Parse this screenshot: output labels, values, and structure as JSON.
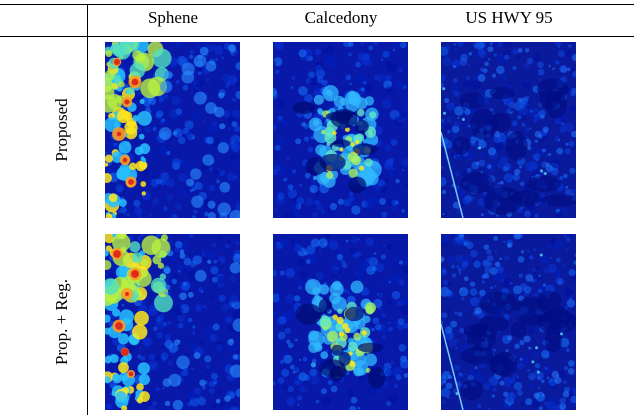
{
  "columns": [
    "Sphene",
    "Calcedony",
    "US HWY 95"
  ],
  "rows": [
    {
      "label": "Proposed"
    },
    {
      "label": "Prop. + Reg."
    }
  ],
  "colormap": {
    "low": "#00008f",
    "mid": "#0a6cff",
    "high": "#ffe81a",
    "peak": "#d8201a"
  },
  "panels": [
    {
      "name": "proposed-sphene",
      "texture": "sphene"
    },
    {
      "name": "proposed-calcedony",
      "texture": "calcedony"
    },
    {
      "name": "proposed-us-hwy-95",
      "texture": "highway"
    },
    {
      "name": "prop-reg-sphene",
      "texture": "sphene"
    },
    {
      "name": "prop-reg-calcedony",
      "texture": "calcedony"
    },
    {
      "name": "prop-reg-us-hwy-95",
      "texture": "highway"
    }
  ]
}
